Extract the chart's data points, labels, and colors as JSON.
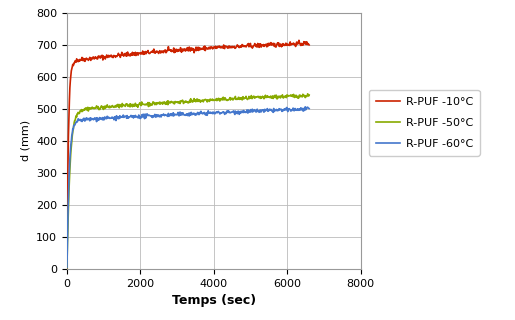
{
  "title": "",
  "xlabel": "Temps (sec)",
  "ylabel": "d (mm)",
  "xlim": [
    0,
    8000
  ],
  "ylim": [
    0,
    800
  ],
  "xticks": [
    0,
    2000,
    4000,
    6000,
    8000
  ],
  "yticks": [
    0,
    100,
    200,
    300,
    400,
    500,
    600,
    700,
    800
  ],
  "series": [
    {
      "label": "R-PUF -10°C",
      "color": "#CC2200",
      "start_y": 0,
      "fast_y": 648,
      "fast_tau": 40,
      "slow_y": 725,
      "slow_tau": 5000,
      "end_x": 6600,
      "noise": 3.5
    },
    {
      "label": "R-PUF -50°C",
      "color": "#88AA00",
      "start_y": 0,
      "fast_y": 495,
      "fast_tau": 80,
      "slow_y": 578,
      "slow_tau": 8000,
      "end_x": 6600,
      "noise": 3.0
    },
    {
      "label": "R-PUF -60°C",
      "color": "#4477CC",
      "start_y": 0,
      "fast_y": 463,
      "fast_tau": 60,
      "slow_y": 548,
      "slow_tau": 12000,
      "end_x": 6600,
      "noise": 3.0
    }
  ],
  "legend_fontsize": 8,
  "grid_color": "#BBBBBB",
  "bg_color": "#FFFFFF",
  "fig_bg_color": "#FFFFFF",
  "tick_labelsize": 8,
  "xlabel_fontsize": 9,
  "ylabel_fontsize": 8,
  "linewidth": 1.2
}
